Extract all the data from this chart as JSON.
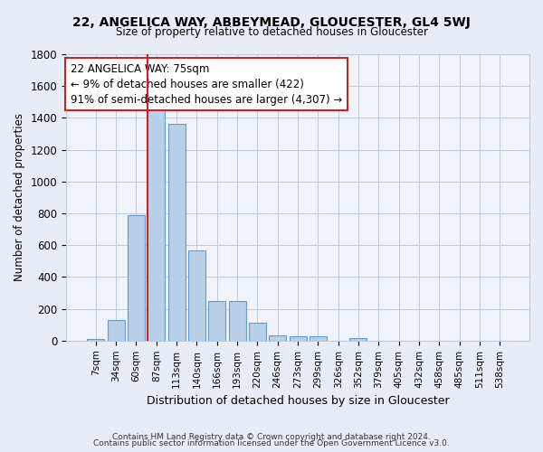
{
  "title": "22, ANGELICA WAY, ABBEYMEAD, GLOUCESTER, GL4 5WJ",
  "subtitle": "Size of property relative to detached houses in Gloucester",
  "xlabel": "Distribution of detached houses by size in Gloucester",
  "ylabel": "Number of detached properties",
  "categories": [
    "7sqm",
    "34sqm",
    "60sqm",
    "87sqm",
    "113sqm",
    "140sqm",
    "166sqm",
    "193sqm",
    "220sqm",
    "246sqm",
    "273sqm",
    "299sqm",
    "326sqm",
    "352sqm",
    "379sqm",
    "405sqm",
    "432sqm",
    "458sqm",
    "485sqm",
    "511sqm",
    "538sqm"
  ],
  "values": [
    10,
    130,
    790,
    1455,
    1360,
    565,
    248,
    248,
    110,
    35,
    30,
    28,
    0,
    18,
    0,
    0,
    0,
    0,
    0,
    0,
    0
  ],
  "bar_color": "#b8d0e8",
  "bar_edge_color": "#6699cc",
  "vline_color": "#cc2222",
  "annotation_text": "22 ANGELICA WAY: 75sqm\n← 9% of detached houses are smaller (422)\n91% of semi-detached houses are larger (4,307) →",
  "annotation_box_facecolor": "#ffffff",
  "annotation_box_edgecolor": "#cc2222",
  "ylim": [
    0,
    1800
  ],
  "yticks": [
    0,
    200,
    400,
    600,
    800,
    1000,
    1200,
    1400,
    1600,
    1800
  ],
  "footer1": "Contains HM Land Registry data © Crown copyright and database right 2024.",
  "footer2": "Contains public sector information licensed under the Open Government Licence v3.0.",
  "bg_color": "#e8edf5",
  "plot_bg_color": "#f0f4fa",
  "grid_color": "#c0cad8"
}
